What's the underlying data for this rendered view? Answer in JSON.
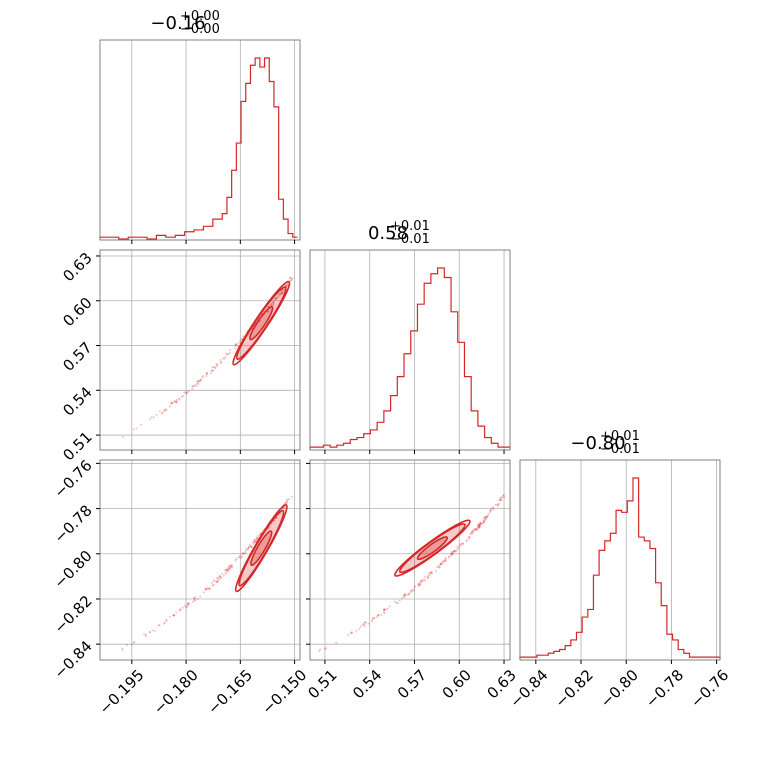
{
  "chart_data": {
    "type": "corner",
    "color": "#d62728",
    "grid": true,
    "parameters": [
      {
        "title_value": "−0.16",
        "err_plus": "+0.00",
        "err_minus": "−0.00",
        "range": [
          -0.2038,
          -0.1485
        ],
        "ticks": [
          -0.195,
          -0.18,
          -0.165,
          -0.15
        ],
        "tick_labels": [
          "−0.195",
          "−0.180",
          "−0.165",
          "−0.150"
        ],
        "hist_bins": [
          -0.2038,
          -0.2012,
          -0.1986,
          -0.196,
          -0.1934,
          -0.1908,
          -0.1882,
          -0.1856,
          -0.183,
          -0.1804,
          -0.1778,
          -0.1752,
          -0.1726,
          -0.17,
          -0.1687,
          -0.1674,
          -0.1661,
          -0.1648,
          -0.1635,
          -0.1622,
          -0.1609,
          -0.1596,
          -0.1583,
          -0.157,
          -0.1557,
          -0.1544,
          -0.1531,
          -0.1518,
          -0.1505,
          -0.1492
        ],
        "hist_counts": [
          1,
          1,
          0,
          1,
          1,
          0,
          2,
          1,
          2,
          4,
          5,
          7,
          11,
          14,
          23,
          38,
          53,
          76,
          86,
          96,
          100,
          95,
          100,
          87,
          73,
          22,
          11,
          3,
          1,
          1
        ]
      },
      {
        "title_value": "0.58",
        "err_plus": "+0.01",
        "err_minus": "−0.01",
        "range": [
          0.5,
          0.634
        ],
        "ticks": [
          0.51,
          0.54,
          0.57,
          0.6,
          0.63
        ],
        "tick_labels": [
          "0.51",
          "0.54",
          "0.57",
          "0.60",
          "0.63"
        ],
        "hist_bins": [
          0.5,
          0.5045,
          0.509,
          0.5135,
          0.518,
          0.5225,
          0.527,
          0.5315,
          0.536,
          0.5405,
          0.545,
          0.5495,
          0.554,
          0.5585,
          0.563,
          0.5675,
          0.572,
          0.5765,
          0.581,
          0.5855,
          0.59,
          0.5945,
          0.599,
          0.6035,
          0.608,
          0.6125,
          0.617,
          0.6215,
          0.626,
          0.6305,
          0.634
        ],
        "hist_counts": [
          1,
          1,
          2,
          1,
          2,
          3,
          5,
          6,
          8,
          10,
          14,
          20,
          28,
          38,
          50,
          62,
          76,
          87,
          92,
          95,
          90,
          72,
          56,
          38,
          20,
          12,
          6,
          3,
          1,
          1
        ]
      },
      {
        "title_value": "−0.80",
        "err_plus": "+0.01",
        "err_minus": "−0.01",
        "range": [
          -0.847,
          -0.7585
        ],
        "ticks": [
          -0.84,
          -0.82,
          -0.8,
          -0.78,
          -0.76
        ],
        "tick_labels": [
          "−0.84",
          "−0.82",
          "−0.80",
          "−0.78",
          "−0.76"
        ],
        "hist_bins": [
          -0.847,
          -0.8445,
          -0.842,
          -0.8395,
          -0.837,
          -0.8345,
          -0.832,
          -0.8295,
          -0.827,
          -0.8245,
          -0.822,
          -0.8195,
          -0.817,
          -0.8145,
          -0.812,
          -0.8095,
          -0.807,
          -0.8045,
          -0.802,
          -0.7995,
          -0.797,
          -0.7945,
          -0.792,
          -0.7895,
          -0.787,
          -0.7845,
          -0.782,
          -0.7795,
          -0.777,
          -0.7745,
          -0.772,
          -0.7695,
          -0.767,
          -0.7645,
          -0.762,
          -0.7585
        ],
        "hist_counts": [
          1,
          1,
          1,
          2,
          2,
          3,
          4,
          5,
          7,
          10,
          14,
          22,
          26,
          44,
          57,
          62,
          66,
          78,
          77,
          83,
          95,
          64,
          62,
          58,
          40,
          28,
          13,
          10,
          5,
          3,
          1,
          1,
          1,
          1,
          1
        ]
      }
    ],
    "contour_levels": [
      0.39,
      0.86,
      0.99
    ]
  }
}
